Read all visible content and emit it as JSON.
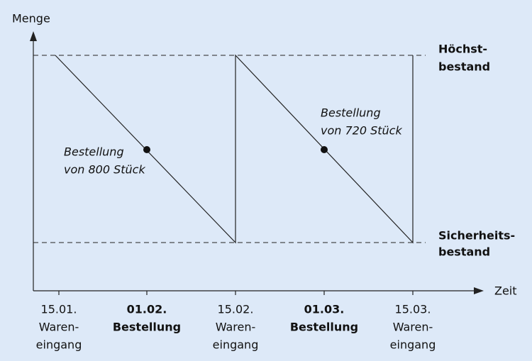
{
  "axes": {
    "y_label": "Menge",
    "x_label": "Zeit"
  },
  "levels": [
    {
      "lines": [
        "Höchst-",
        "bestand"
      ]
    },
    {
      "lines": [
        "Sicherheits-",
        "bestand"
      ]
    }
  ],
  "annotations": [
    {
      "lines": [
        "Bestellung",
        "von 800 Stück"
      ]
    },
    {
      "lines": [
        "Bestellung",
        "von 720 Stück"
      ]
    }
  ],
  "x_labels": [
    {
      "lines": [
        "15.01.",
        "Waren-",
        "eingang"
      ]
    },
    {
      "lines": [
        "01.02.",
        "Bestellung"
      ]
    },
    {
      "lines": [
        "15.02.",
        "Waren-",
        "eingang"
      ]
    },
    {
      "lines": [
        "01.03.",
        "Bestellung"
      ]
    },
    {
      "lines": [
        "15.03.",
        "Waren-",
        "eingang"
      ]
    }
  ]
}
